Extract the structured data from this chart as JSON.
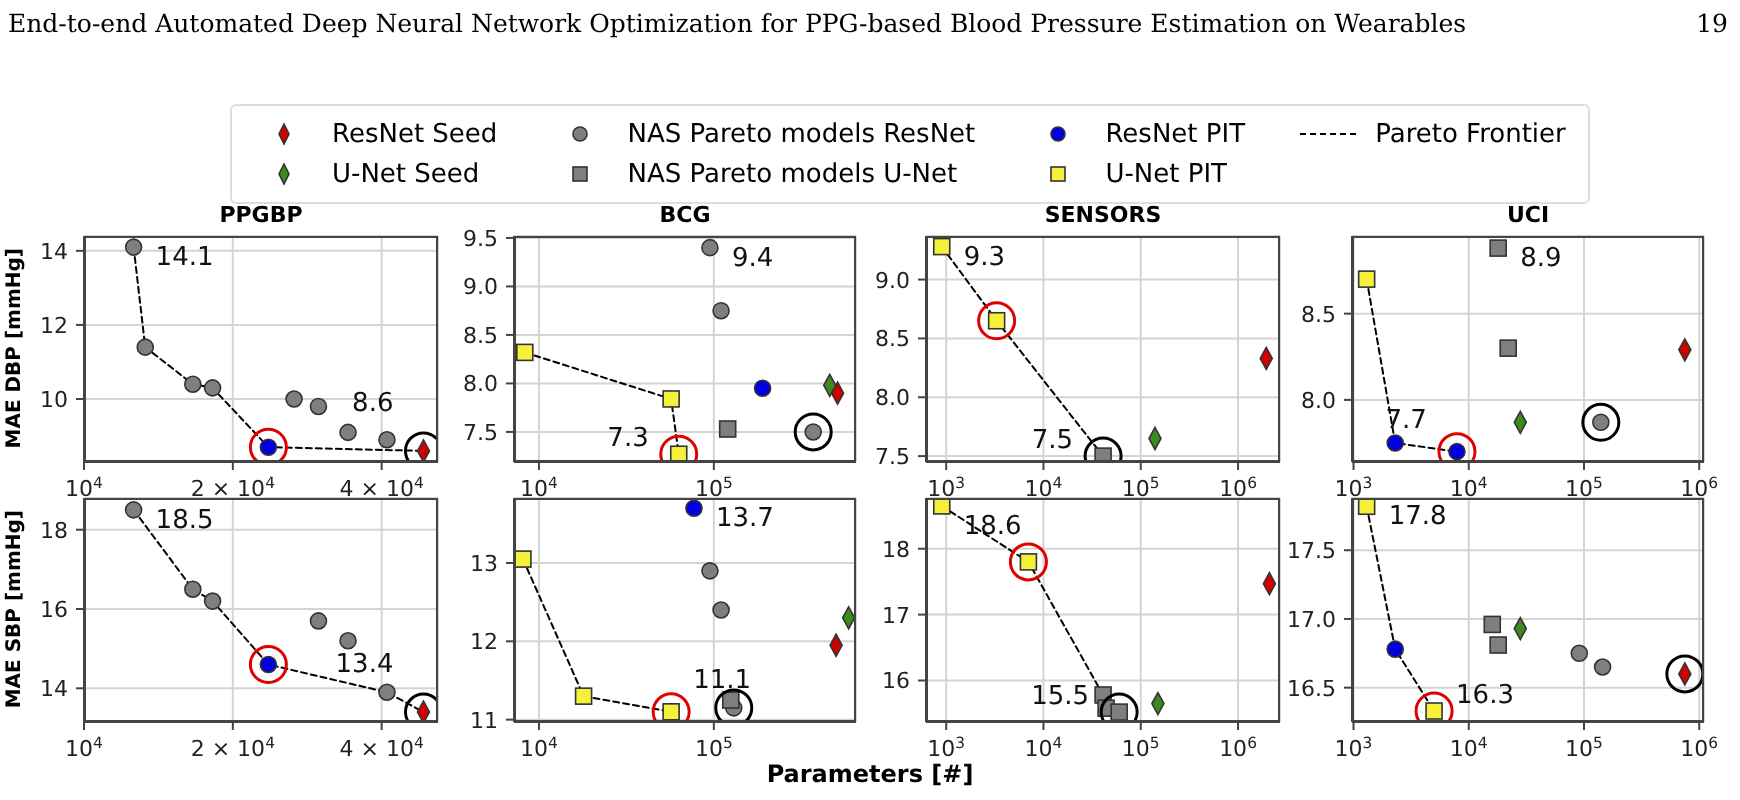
{
  "chart_data": [
    {
      "type": "scatter",
      "title": "PPGBP",
      "ylabel": "MAE DBP [mmHg]",
      "annotations": [
        "End-to-end Automated Deep Neural Network Optimization for PPG-based Blood Pressure Estimation on Wearables",
        "19",
        {
          "text": "14.1",
          "x": 12600,
          "y": 14.1
        },
        {
          "text": "8.6",
          "x": 48600,
          "y": 8.6
        }
      ],
      "log": "x",
      "grid": true,
      "xlim": [
        10000,
        52000
      ],
      "xticks": [
        {
          "value": 10000,
          "label": "10$^{4}$"
        },
        {
          "value": 20000,
          "label": "2 × 10$^{4}$"
        },
        {
          "value": 40000,
          "label": "4 × 10$^{4}$"
        }
      ],
      "ylim": [
        8.3,
        14.4
      ],
      "yticks": [
        10,
        12,
        14
      ],
      "series": [
        {
          "type": "scatter",
          "marker": "diamond",
          "color": "#d40000",
          "x": [
            48600
          ],
          "values": [
            8.6
          ]
        },
        {
          "type": "scatter",
          "marker": "circle",
          "color": "#7f7f7f",
          "x": [
            12600,
            13300,
            16600,
            18200,
            26600,
            29800,
            34200,
            41000
          ],
          "values": [
            14.1,
            11.4,
            10.4,
            10.3,
            10.0,
            9.8,
            9.1,
            8.9
          ]
        },
        {
          "type": "scatter",
          "marker": "circle",
          "color": "#0000e0",
          "x": [
            23600
          ],
          "values": [
            8.7
          ]
        },
        {
          "type": "line",
          "marker": "none",
          "line_style": "dashed",
          "color": "#000000",
          "x": [
            12600,
            13300,
            16600,
            18200,
            23600,
            48600
          ],
          "values": [
            14.1,
            11.4,
            10.4,
            10.3,
            8.7,
            8.6
          ]
        },
        {
          "type": "bubble",
          "color": "#e00000",
          "x": [
            23600
          ],
          "values": [
            8.7
          ],
          "sizes": [
            1
          ]
        },
        {
          "type": "bubble",
          "color": "#000000",
          "x": [
            48600
          ],
          "values": [
            8.6
          ],
          "sizes": [
            1
          ]
        }
      ]
    },
    {
      "type": "scatter",
      "title": "BCG",
      "legend": "top",
      "annotations": [
        {
          "text": "9.4",
          "x": 95000,
          "y": 9.4
        },
        {
          "text": "7.3",
          "x": 63000,
          "y": 7.27
        }
      ],
      "log": "x",
      "grid": true,
      "xlim": [
        7200,
        650000
      ],
      "xticks": [
        {
          "value": 10000,
          "label": "10$^{4}$"
        },
        {
          "value": 100000,
          "label": "10$^{5}$"
        }
      ],
      "ylim": [
        7.19,
        9.52
      ],
      "yticks": [
        7.5,
        {
          "value": 8,
          "label": "8.0"
        },
        8.5,
        {
          "value": 9,
          "label": "9.0"
        },
        9.5
      ],
      "series": [
        {
          "name": "ResNet Seed",
          "type": "scatter",
          "marker": "diamond",
          "color": "#d40000",
          "x": [
            510000
          ],
          "values": [
            7.9
          ]
        },
        {
          "name": "U-Net Seed",
          "type": "scatter",
          "marker": "diamond",
          "color": "#3d8a1f",
          "x": [
            460000
          ],
          "values": [
            7.98
          ]
        },
        {
          "name": "NAS Pareto models ResNet",
          "type": "scatter",
          "marker": "circle",
          "color": "#7f7f7f",
          "x": [
            95000,
            110000,
            370000
          ],
          "values": [
            9.4,
            8.75,
            7.5
          ]
        },
        {
          "name": "NAS Pareto models U-Net",
          "type": "scatter",
          "marker": "square",
          "color": "#7f7f7f",
          "x": [
            120000
          ],
          "values": [
            7.53
          ]
        },
        {
          "name": "ResNet PIT",
          "type": "scatter",
          "marker": "circle",
          "color": "#0000e0",
          "x": [
            190000
          ],
          "values": [
            7.95
          ]
        },
        {
          "name": "U-Net PIT",
          "type": "scatter",
          "marker": "square",
          "color": "#f5f03a",
          "x": [
            8300,
            57000,
            63000
          ],
          "values": [
            8.32,
            7.84,
            7.27
          ]
        },
        {
          "name": "Pareto Frontier",
          "type": "line",
          "marker": "none",
          "line_style": "dashed",
          "color": "#000000",
          "x": [
            8300,
            57000,
            63000
          ],
          "values": [
            8.32,
            7.84,
            7.27
          ]
        },
        {
          "type": "bubble",
          "color": "#e00000",
          "x": [
            63000
          ],
          "values": [
            7.27
          ],
          "sizes": [
            1
          ]
        },
        {
          "type": "bubble",
          "color": "#000000",
          "x": [
            370000
          ],
          "values": [
            7.5
          ],
          "sizes": [
            1
          ]
        }
      ]
    },
    {
      "type": "scatter",
      "title": "SENSORS",
      "annotations": [
        {
          "text": "9.3",
          "x": 900,
          "y": 9.28
        },
        {
          "text": "7.5",
          "x": 41000,
          "y": 7.5
        }
      ],
      "log": "x",
      "grid": true,
      "xlim": [
        620,
        2700000
      ],
      "xticks": [
        {
          "value": 1000,
          "label": "10$^{3}$"
        },
        {
          "value": 10000,
          "label": "10$^{4}$"
        },
        {
          "value": 100000,
          "label": "10$^{5}$"
        },
        {
          "value": 1000000,
          "label": "10$^{6}$"
        }
      ],
      "ylim": [
        7.45,
        9.37
      ],
      "yticks": [
        7.5,
        {
          "value": 8,
          "label": "8.0"
        },
        8.5,
        {
          "value": 9,
          "label": "9.0"
        }
      ],
      "series": [
        {
          "type": "scatter",
          "marker": "diamond",
          "color": "#d40000",
          "x": [
            1950000
          ],
          "values": [
            8.33
          ]
        },
        {
          "type": "scatter",
          "marker": "diamond",
          "color": "#3d8a1f",
          "x": [
            140000
          ],
          "values": [
            7.65
          ]
        },
        {
          "type": "scatter",
          "marker": "square",
          "color": "#7f7f7f",
          "x": [
            41000
          ],
          "values": [
            7.5
          ]
        },
        {
          "type": "scatter",
          "marker": "square",
          "color": "#f5f03a",
          "x": [
            900,
            3300
          ],
          "values": [
            9.28,
            8.65
          ]
        },
        {
          "type": "line",
          "marker": "none",
          "line_style": "dashed",
          "color": "#000000",
          "x": [
            900,
            3300,
            41000
          ],
          "values": [
            9.28,
            8.65,
            7.5
          ]
        },
        {
          "type": "bubble",
          "color": "#e00000",
          "x": [
            3300
          ],
          "values": [
            8.65
          ],
          "sizes": [
            1
          ]
        },
        {
          "type": "bubble",
          "color": "#000000",
          "x": [
            41000
          ],
          "values": [
            7.5
          ],
          "sizes": [
            1
          ]
        }
      ]
    },
    {
      "type": "scatter",
      "title": "UCI",
      "annotations": [
        {
          "text": "8.9",
          "x": 18000,
          "y": 8.88
        },
        {
          "text": "7.7",
          "x": 7900,
          "y": 7.7
        }
      ],
      "log": "x",
      "grid": true,
      "xlim": [
        970,
        1100000
      ],
      "xticks": [
        {
          "value": 1000,
          "label": "10$^{3}$"
        },
        {
          "value": 10000,
          "label": "10$^{4}$"
        },
        {
          "value": 100000,
          "label": "10$^{5}$"
        },
        {
          "value": 1000000,
          "label": "10$^{6}$"
        }
      ],
      "ylim": [
        7.64,
        8.95
      ],
      "yticks": [
        {
          "value": 8,
          "label": "8.0"
        },
        8.5
      ],
      "series": [
        {
          "type": "scatter",
          "marker": "diamond",
          "color": "#d40000",
          "x": [
            750000
          ],
          "values": [
            8.29
          ]
        },
        {
          "type": "scatter",
          "marker": "diamond",
          "color": "#3d8a1f",
          "x": [
            28000
          ],
          "values": [
            7.87
          ]
        },
        {
          "type": "scatter",
          "marker": "circle",
          "color": "#7f7f7f",
          "x": [
            140000
          ],
          "values": [
            7.87
          ]
        },
        {
          "type": "scatter",
          "marker": "square",
          "color": "#7f7f7f",
          "x": [
            18000,
            22000
          ],
          "values": [
            8.88,
            8.3
          ]
        },
        {
          "type": "scatter",
          "marker": "circle",
          "color": "#0000e0",
          "x": [
            2300,
            7900
          ],
          "values": [
            7.75,
            7.7
          ]
        },
        {
          "type": "scatter",
          "marker": "square",
          "color": "#f5f03a",
          "x": [
            1300
          ],
          "values": [
            8.7
          ]
        },
        {
          "type": "line",
          "marker": "none",
          "line_style": "dashed",
          "color": "#000000",
          "x": [
            1300,
            2300,
            7900
          ],
          "values": [
            8.7,
            7.75,
            7.7
          ]
        },
        {
          "type": "bubble",
          "color": "#e00000",
          "x": [
            7900
          ],
          "values": [
            7.7
          ],
          "sizes": [
            1
          ]
        },
        {
          "type": "bubble",
          "color": "#000000",
          "x": [
            140000
          ],
          "values": [
            7.87
          ],
          "sizes": [
            1
          ]
        }
      ]
    },
    {
      "type": "scatter",
      "ylabel": "MAE SBP [mmHg]",
      "annotations": [
        {
          "text": "18.5",
          "x": 12600,
          "y": 18.5
        },
        {
          "text": "13.4",
          "x": 48600,
          "y": 13.4
        }
      ],
      "log": "x",
      "grid": true,
      "xlim": [
        10000,
        52000
      ],
      "xticks": [
        {
          "value": 10000,
          "label": "10$^{4}$"
        },
        {
          "value": 20000,
          "label": "2 × 10$^{4}$"
        },
        {
          "value": 40000,
          "label": "4 × 10$^{4}$"
        }
      ],
      "ylim": [
        13.15,
        18.8
      ],
      "yticks": [
        14,
        16,
        18
      ],
      "series": [
        {
          "type": "scatter",
          "marker": "diamond",
          "color": "#d40000",
          "x": [
            48600
          ],
          "values": [
            13.4
          ]
        },
        {
          "type": "scatter",
          "marker": "circle",
          "color": "#7f7f7f",
          "x": [
            12600,
            16600,
            18200,
            29800,
            34200,
            41000
          ],
          "values": [
            18.5,
            16.5,
            16.2,
            15.7,
            15.2,
            13.9
          ]
        },
        {
          "type": "scatter",
          "marker": "circle",
          "color": "#0000e0",
          "x": [
            23600
          ],
          "values": [
            14.6
          ]
        },
        {
          "type": "line",
          "marker": "none",
          "line_style": "dashed",
          "color": "#000000",
          "x": [
            12600,
            16600,
            18200,
            23600,
            41000,
            48600
          ],
          "values": [
            18.5,
            16.5,
            16.2,
            14.6,
            13.9,
            13.4
          ]
        },
        {
          "type": "bubble",
          "color": "#e00000",
          "x": [
            23600
          ],
          "values": [
            14.6
          ],
          "sizes": [
            1
          ]
        },
        {
          "type": "bubble",
          "color": "#000000",
          "x": [
            48600
          ],
          "values": [
            13.4
          ],
          "sizes": [
            1
          ]
        }
      ]
    },
    {
      "type": "scatter",
      "xlabel": "Parameters [#]",
      "annotations": [
        {
          "text": "13.7",
          "x": 77000,
          "y": 13.7
        },
        {
          "text": "11.1",
          "x": 57000,
          "y": 11.1
        }
      ],
      "log": "x",
      "grid": true,
      "xlim": [
        7200,
        650000
      ],
      "xticks": [
        {
          "value": 10000,
          "label": "10$^{4}$"
        },
        {
          "value": 100000,
          "label": "10$^{5}$"
        }
      ],
      "ylim": [
        10.97,
        13.83
      ],
      "yticks": [
        11,
        12,
        13
      ],
      "series": [
        {
          "type": "scatter",
          "marker": "diamond",
          "color": "#d40000",
          "x": [
            500000
          ],
          "values": [
            11.95
          ]
        },
        {
          "type": "scatter",
          "marker": "diamond",
          "color": "#3d8a1f",
          "x": [
            590000
          ],
          "values": [
            12.3
          ]
        },
        {
          "type": "scatter",
          "marker": "circle",
          "color": "#7f7f7f",
          "x": [
            95000,
            110000,
            130000
          ],
          "values": [
            12.9,
            12.4,
            11.15
          ]
        },
        {
          "type": "scatter",
          "marker": "square",
          "color": "#7f7f7f",
          "x": [
            125000
          ],
          "values": [
            11.25
          ]
        },
        {
          "type": "scatter",
          "marker": "circle",
          "color": "#0000e0",
          "x": [
            77000
          ],
          "values": [
            13.7
          ]
        },
        {
          "type": "scatter",
          "marker": "square",
          "color": "#f5f03a",
          "x": [
            8100,
            18000,
            57000
          ],
          "values": [
            13.05,
            11.3,
            11.1
          ]
        },
        {
          "type": "line",
          "marker": "none",
          "line_style": "dashed",
          "color": "#000000",
          "x": [
            8100,
            18000,
            57000
          ],
          "values": [
            13.05,
            11.3,
            11.1
          ]
        },
        {
          "type": "bubble",
          "color": "#e00000",
          "x": [
            57000
          ],
          "values": [
            11.1
          ],
          "sizes": [
            1
          ]
        },
        {
          "type": "bubble",
          "color": "#000000",
          "x": [
            130000
          ],
          "values": [
            11.15
          ],
          "sizes": [
            1
          ]
        }
      ]
    },
    {
      "type": "scatter",
      "annotations": [
        {
          "text": "18.6",
          "x": 900,
          "y": 18.65
        },
        {
          "text": "15.5",
          "x": 60000,
          "y": 15.52
        }
      ],
      "log": "x",
      "grid": true,
      "xlim": [
        620,
        2700000
      ],
      "xticks": [
        {
          "value": 1000,
          "label": "10$^{3}$"
        },
        {
          "value": 10000,
          "label": "10$^{4}$"
        },
        {
          "value": 100000,
          "label": "10$^{5}$"
        },
        {
          "value": 1000000,
          "label": "10$^{6}$"
        }
      ],
      "ylim": [
        15.37,
        18.77
      ],
      "yticks": [
        16,
        17,
        18
      ],
      "series": [
        {
          "type": "scatter",
          "marker": "diamond",
          "color": "#d40000",
          "x": [
            2100000
          ],
          "values": [
            17.47
          ]
        },
        {
          "type": "scatter",
          "marker": "diamond",
          "color": "#3d8a1f",
          "x": [
            150000
          ],
          "values": [
            15.65
          ]
        },
        {
          "type": "scatter",
          "marker": "square",
          "color": "#7f7f7f",
          "x": [
            41000,
            44000,
            60000
          ],
          "values": [
            15.78,
            15.58,
            15.52
          ]
        },
        {
          "type": "scatter",
          "marker": "square",
          "color": "#f5f03a",
          "x": [
            900,
            7000
          ],
          "values": [
            18.65,
            17.8
          ]
        },
        {
          "type": "line",
          "marker": "none",
          "line_style": "dashed",
          "color": "#000000",
          "x": [
            900,
            7000,
            41000,
            44000,
            60000
          ],
          "values": [
            18.65,
            17.8,
            15.78,
            15.58,
            15.52
          ]
        },
        {
          "type": "bubble",
          "color": "#e00000",
          "x": [
            7000
          ],
          "values": [
            17.8
          ],
          "sizes": [
            1
          ]
        },
        {
          "type": "bubble",
          "color": "#000000",
          "x": [
            60000
          ],
          "values": [
            15.52
          ],
          "sizes": [
            1
          ]
        }
      ]
    },
    {
      "type": "scatter",
      "annotations": [
        {
          "text": "17.8",
          "x": 1300,
          "y": 17.82
        },
        {
          "text": "16.3",
          "x": 5000,
          "y": 16.33
        }
      ],
      "log": "x",
      "grid": true,
      "xlim": [
        970,
        1100000
      ],
      "xticks": [
        {
          "value": 1000,
          "label": "10$^{3}$"
        },
        {
          "value": 10000,
          "label": "10$^{4}$"
        },
        {
          "value": 100000,
          "label": "10$^{5}$"
        },
        {
          "value": 1000000,
          "label": "10$^{6}$"
        }
      ],
      "ylim": [
        16.25,
        17.88
      ],
      "yticks": [
        16.5,
        {
          "value": 17,
          "label": "17.0"
        },
        17.5
      ],
      "series": [
        {
          "type": "scatter",
          "marker": "diamond",
          "color": "#d40000",
          "x": [
            750000
          ],
          "values": [
            16.6
          ]
        },
        {
          "type": "scatter",
          "marker": "diamond",
          "color": "#3d8a1f",
          "x": [
            28000
          ],
          "values": [
            16.93
          ]
        },
        {
          "type": "scatter",
          "marker": "circle",
          "color": "#7f7f7f",
          "x": [
            91000,
            145000
          ],
          "values": [
            16.75,
            16.65
          ]
        },
        {
          "type": "scatter",
          "marker": "square",
          "color": "#7f7f7f",
          "x": [
            16000,
            18000
          ],
          "values": [
            16.96,
            16.81
          ]
        },
        {
          "type": "scatter",
          "marker": "circle",
          "color": "#0000e0",
          "x": [
            2300
          ],
          "values": [
            16.78
          ]
        },
        {
          "type": "scatter",
          "marker": "square",
          "color": "#f5f03a",
          "x": [
            1300,
            5000
          ],
          "values": [
            17.82,
            16.33
          ]
        },
        {
          "type": "line",
          "marker": "none",
          "line_style": "dashed",
          "color": "#000000",
          "x": [
            1300,
            2300,
            5000
          ],
          "values": [
            17.82,
            16.78,
            16.33
          ]
        },
        {
          "type": "bubble",
          "color": "#e00000",
          "x": [
            5000
          ],
          "values": [
            16.33
          ],
          "sizes": [
            1
          ]
        },
        {
          "type": "bubble",
          "color": "#000000",
          "x": [
            750000
          ],
          "values": [
            16.6
          ],
          "sizes": [
            1
          ]
        }
      ]
    }
  ]
}
